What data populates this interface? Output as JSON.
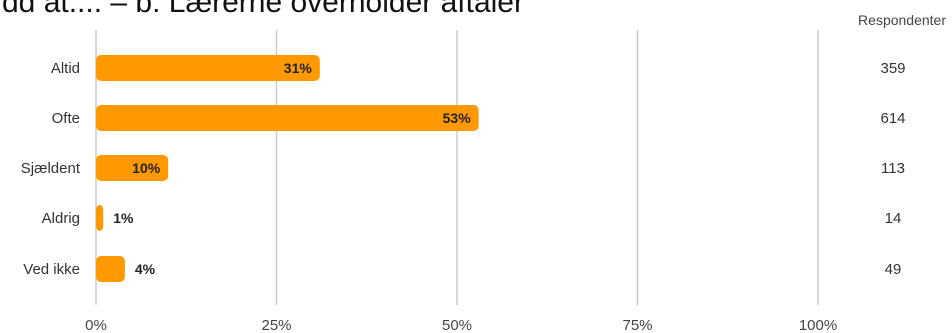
{
  "title": "dd at.... – b: Lærerne overholder aftaler",
  "respondents_header": "Respondenter",
  "colors": {
    "bar": "#FF9900",
    "grid": "#CCCCCC",
    "text": "#444444"
  },
  "chart_data": {
    "type": "bar",
    "orientation": "horizontal",
    "categories": [
      "Altid",
      "Ofte",
      "Sjældent",
      "Aldrig",
      "Ved ikke"
    ],
    "values": [
      31,
      53,
      10,
      1,
      4
    ],
    "value_labels": [
      "31%",
      "53%",
      "10%",
      "1%",
      "4%"
    ],
    "respondents": [
      "359",
      "614",
      "113",
      "14",
      "49"
    ],
    "xlim": [
      0,
      100
    ],
    "xticks": [
      0,
      25,
      50,
      75,
      100
    ],
    "xtick_labels": [
      "0%",
      "25%",
      "50%",
      "75%",
      "100%"
    ],
    "grid": true
  }
}
